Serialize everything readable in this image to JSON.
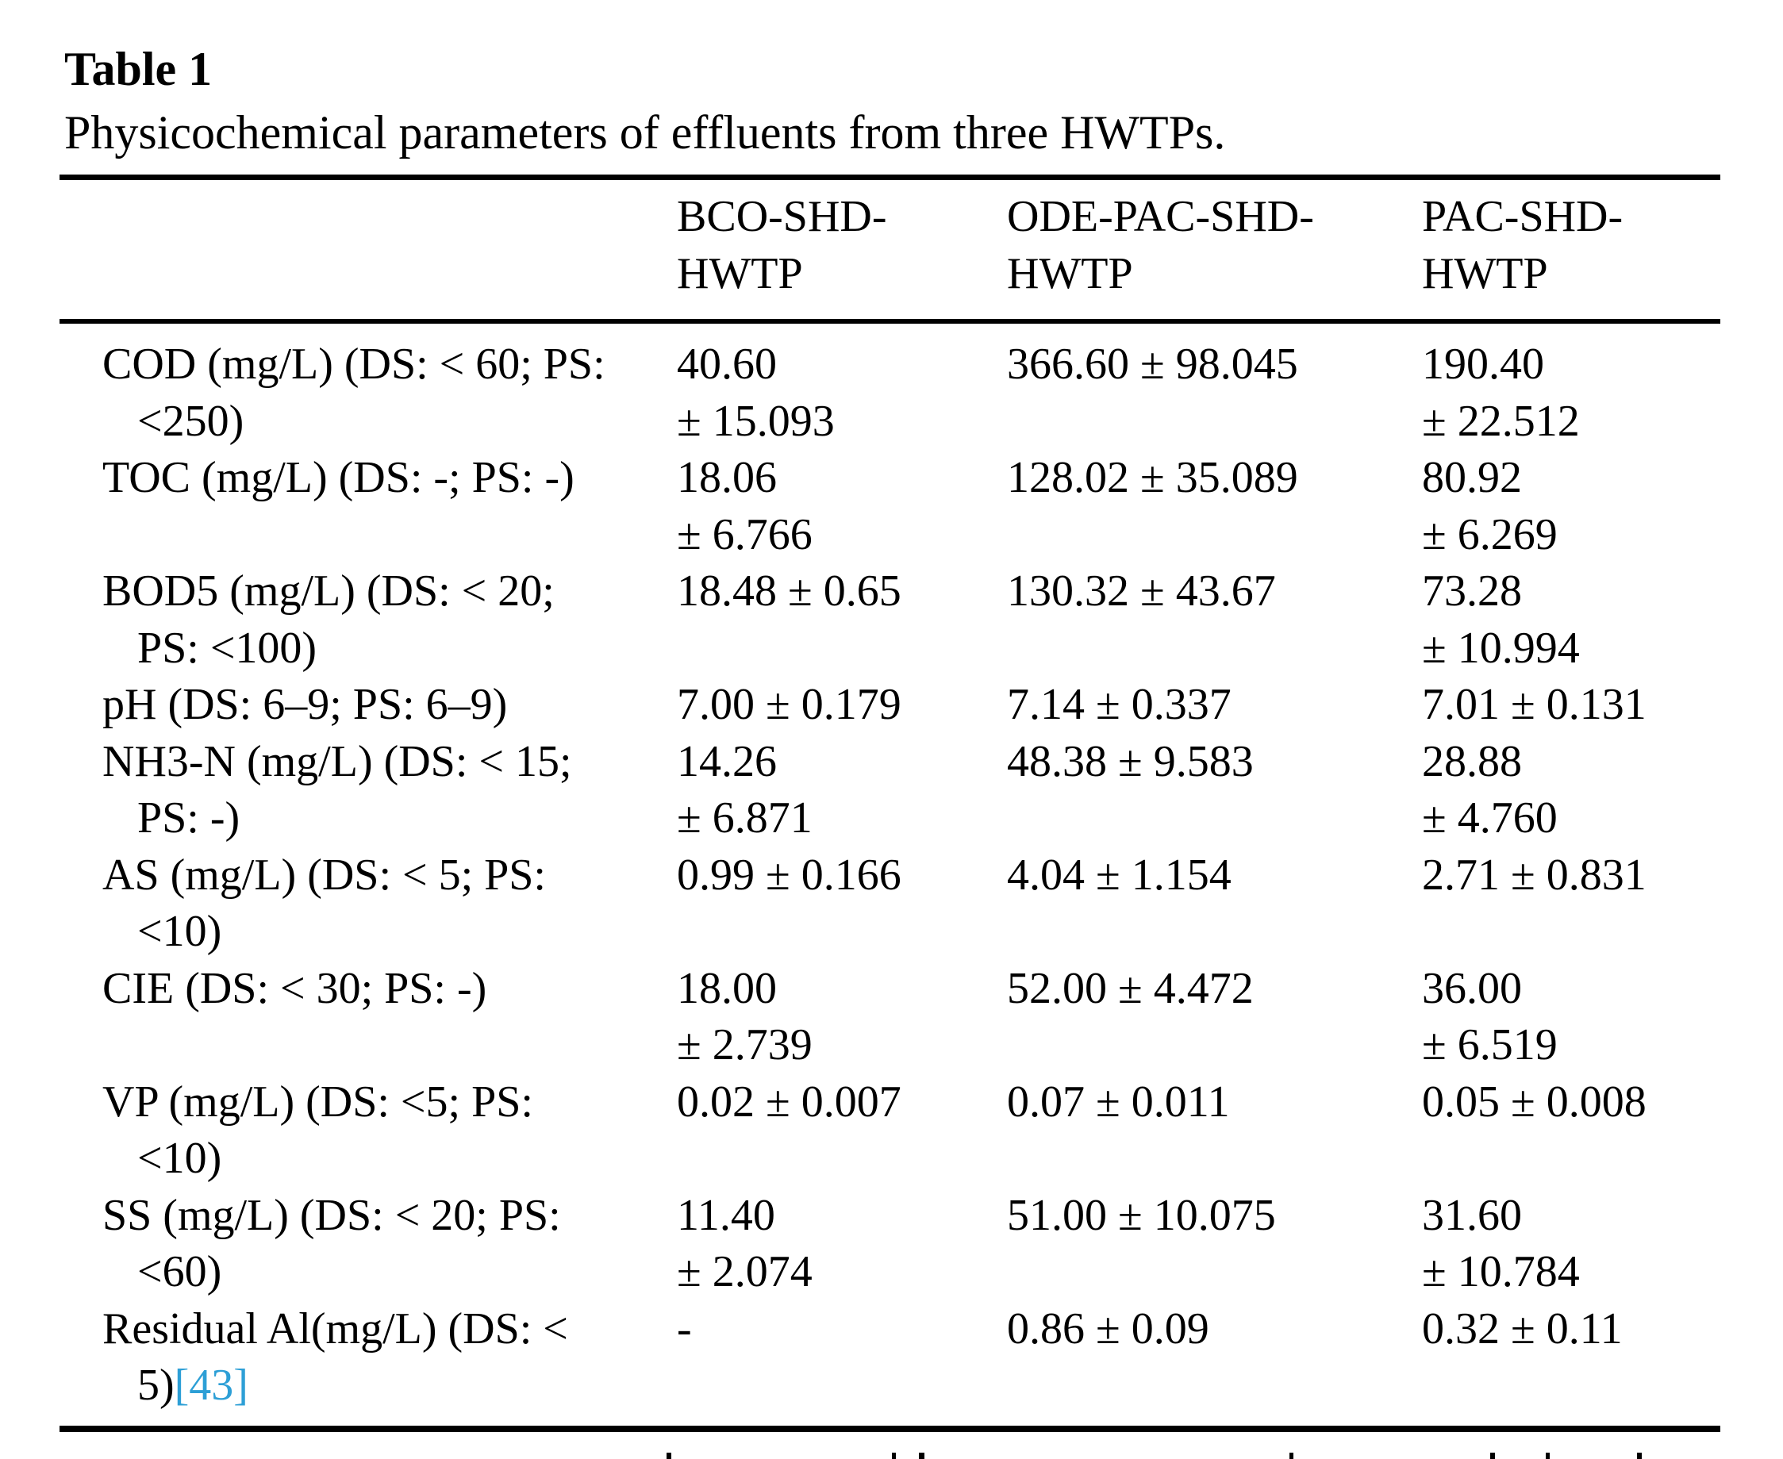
{
  "page": {
    "background": "#ffffff",
    "text_color": "#000000",
    "link_color": "#2d9fd6"
  },
  "table": {
    "number": "Table 1",
    "caption": "Physicochemical parameters of effluents from three HWTPs.",
    "columns": [
      [
        "BCO-SHD-",
        "HWTP"
      ],
      [
        "ODE-PAC-SHD-",
        "HWTP"
      ],
      [
        "PAC-SHD-",
        "HWTP"
      ]
    ],
    "rows": [
      {
        "label": [
          "COD (mg/L) (DS: < 60; PS:",
          "<250)"
        ],
        "bco": [
          "40.60",
          "± 15.093"
        ],
        "ode": [
          "366.60 ± 98.045"
        ],
        "pac": [
          "190.40",
          "± 22.512"
        ]
      },
      {
        "label": [
          "TOC (mg/L) (DS: -; PS: -)"
        ],
        "bco": [
          "18.06",
          "± 6.766"
        ],
        "ode": [
          "128.02 ± 35.089"
        ],
        "pac": [
          "80.92",
          "± 6.269"
        ]
      },
      {
        "label": [
          "BOD5 (mg/L) (DS: < 20;",
          "PS: <100)"
        ],
        "bco": [
          "18.48 ± 0.65"
        ],
        "ode": [
          "130.32 ± 43.67"
        ],
        "pac": [
          "73.28",
          "± 10.994"
        ]
      },
      {
        "label": [
          "pH (DS: 6–9; PS: 6–9)"
        ],
        "bco": [
          "7.00 ± 0.179"
        ],
        "ode": [
          "7.14 ± 0.337"
        ],
        "pac": [
          "7.01 ± 0.131"
        ]
      },
      {
        "label": [
          "NH3-N (mg/L) (DS: < 15;",
          "PS: -)"
        ],
        "bco": [
          "14.26",
          "± 6.871"
        ],
        "ode": [
          "48.38 ± 9.583"
        ],
        "pac": [
          "28.88",
          "± 4.760"
        ]
      },
      {
        "label": [
          "AS (mg/L) (DS: < 5; PS:",
          "<10)"
        ],
        "bco": [
          "0.99 ± 0.166"
        ],
        "ode": [
          "4.04 ± 1.154"
        ],
        "pac": [
          "2.71 ± 0.831"
        ]
      },
      {
        "label": [
          "CIE (DS: < 30; PS: -)"
        ],
        "bco": [
          "18.00",
          "± 2.739"
        ],
        "ode": [
          "52.00 ± 4.472"
        ],
        "pac": [
          "36.00",
          "± 6.519"
        ]
      },
      {
        "label": [
          "VP (mg/L) (DS: <5; PS:",
          "<10)"
        ],
        "bco": [
          "0.02 ± 0.007"
        ],
        "ode": [
          "0.07 ± 0.011"
        ],
        "pac": [
          "0.05 ± 0.008"
        ]
      },
      {
        "label": [
          "SS (mg/L) (DS: < 20; PS:",
          "<60)"
        ],
        "bco": [
          "11.40",
          "± 2.074"
        ],
        "ode": [
          "51.00 ± 10.075"
        ],
        "pac": [
          "31.60",
          "± 10.784"
        ]
      },
      {
        "label": [
          "Residual Al(mg/L) (DS: <",
          "5)"
        ],
        "ref": "[43]",
        "bco": [
          "-"
        ],
        "ode": [
          "0.86 ± 0.09"
        ],
        "pac": [
          "0.32 ± 0.11"
        ]
      }
    ]
  }
}
